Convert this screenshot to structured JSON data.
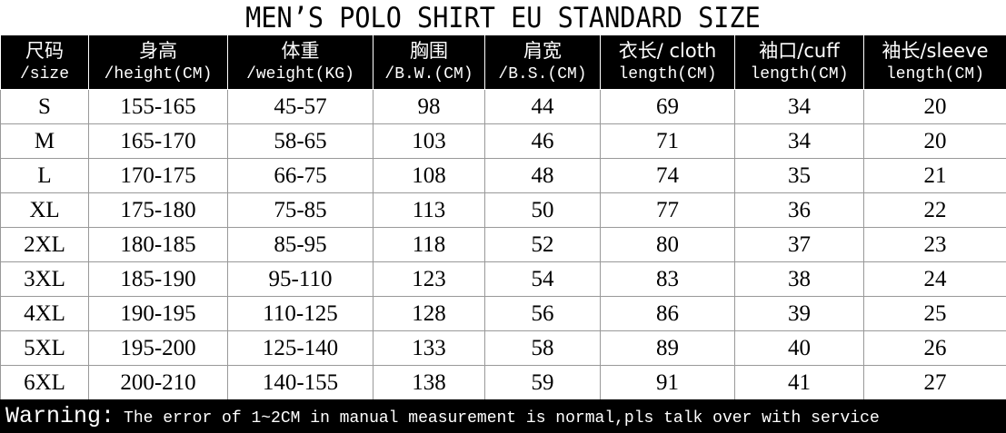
{
  "title": "MEN’S POLO SHIRT EU STANDARD SIZE",
  "table": {
    "headers": [
      [
        "尺码",
        "/size"
      ],
      [
        "身高",
        "/height(CM)"
      ],
      [
        "体重",
        "/weight(KG)"
      ],
      [
        "胸围",
        "/B.W.(CM)"
      ],
      [
        "肩宽",
        "/B.S.(CM)"
      ],
      [
        "衣长/ cloth",
        "length(CM)"
      ],
      [
        "袖口/cuff",
        "length(CM)"
      ],
      [
        "袖长/sleeve",
        "length(CM)"
      ]
    ],
    "rows": [
      [
        "S",
        "155-165",
        "45-57",
        98,
        44,
        69,
        34,
        20
      ],
      [
        "M",
        "165-170",
        "58-65",
        103,
        46,
        71,
        34,
        20
      ],
      [
        "L",
        "170-175",
        "66-75",
        108,
        48,
        74,
        35,
        21
      ],
      [
        "XL",
        "175-180",
        "75-85",
        113,
        50,
        77,
        36,
        22
      ],
      [
        "2XL",
        "180-185",
        "85-95",
        118,
        52,
        80,
        37,
        23
      ],
      [
        "3XL",
        "185-190",
        "95-110",
        123,
        54,
        83,
        38,
        24
      ],
      [
        "4XL",
        "190-195",
        "110-125",
        128,
        56,
        86,
        39,
        25
      ],
      [
        "5XL",
        "195-200",
        "125-140",
        133,
        58,
        89,
        40,
        26
      ],
      [
        "6XL",
        "200-210",
        "140-155",
        138,
        59,
        91,
        41,
        27
      ]
    ]
  },
  "footer": {
    "label": "Warning:",
    "text": "The error of 1~2CM in manual measurement is normal,pls talk over with service"
  }
}
